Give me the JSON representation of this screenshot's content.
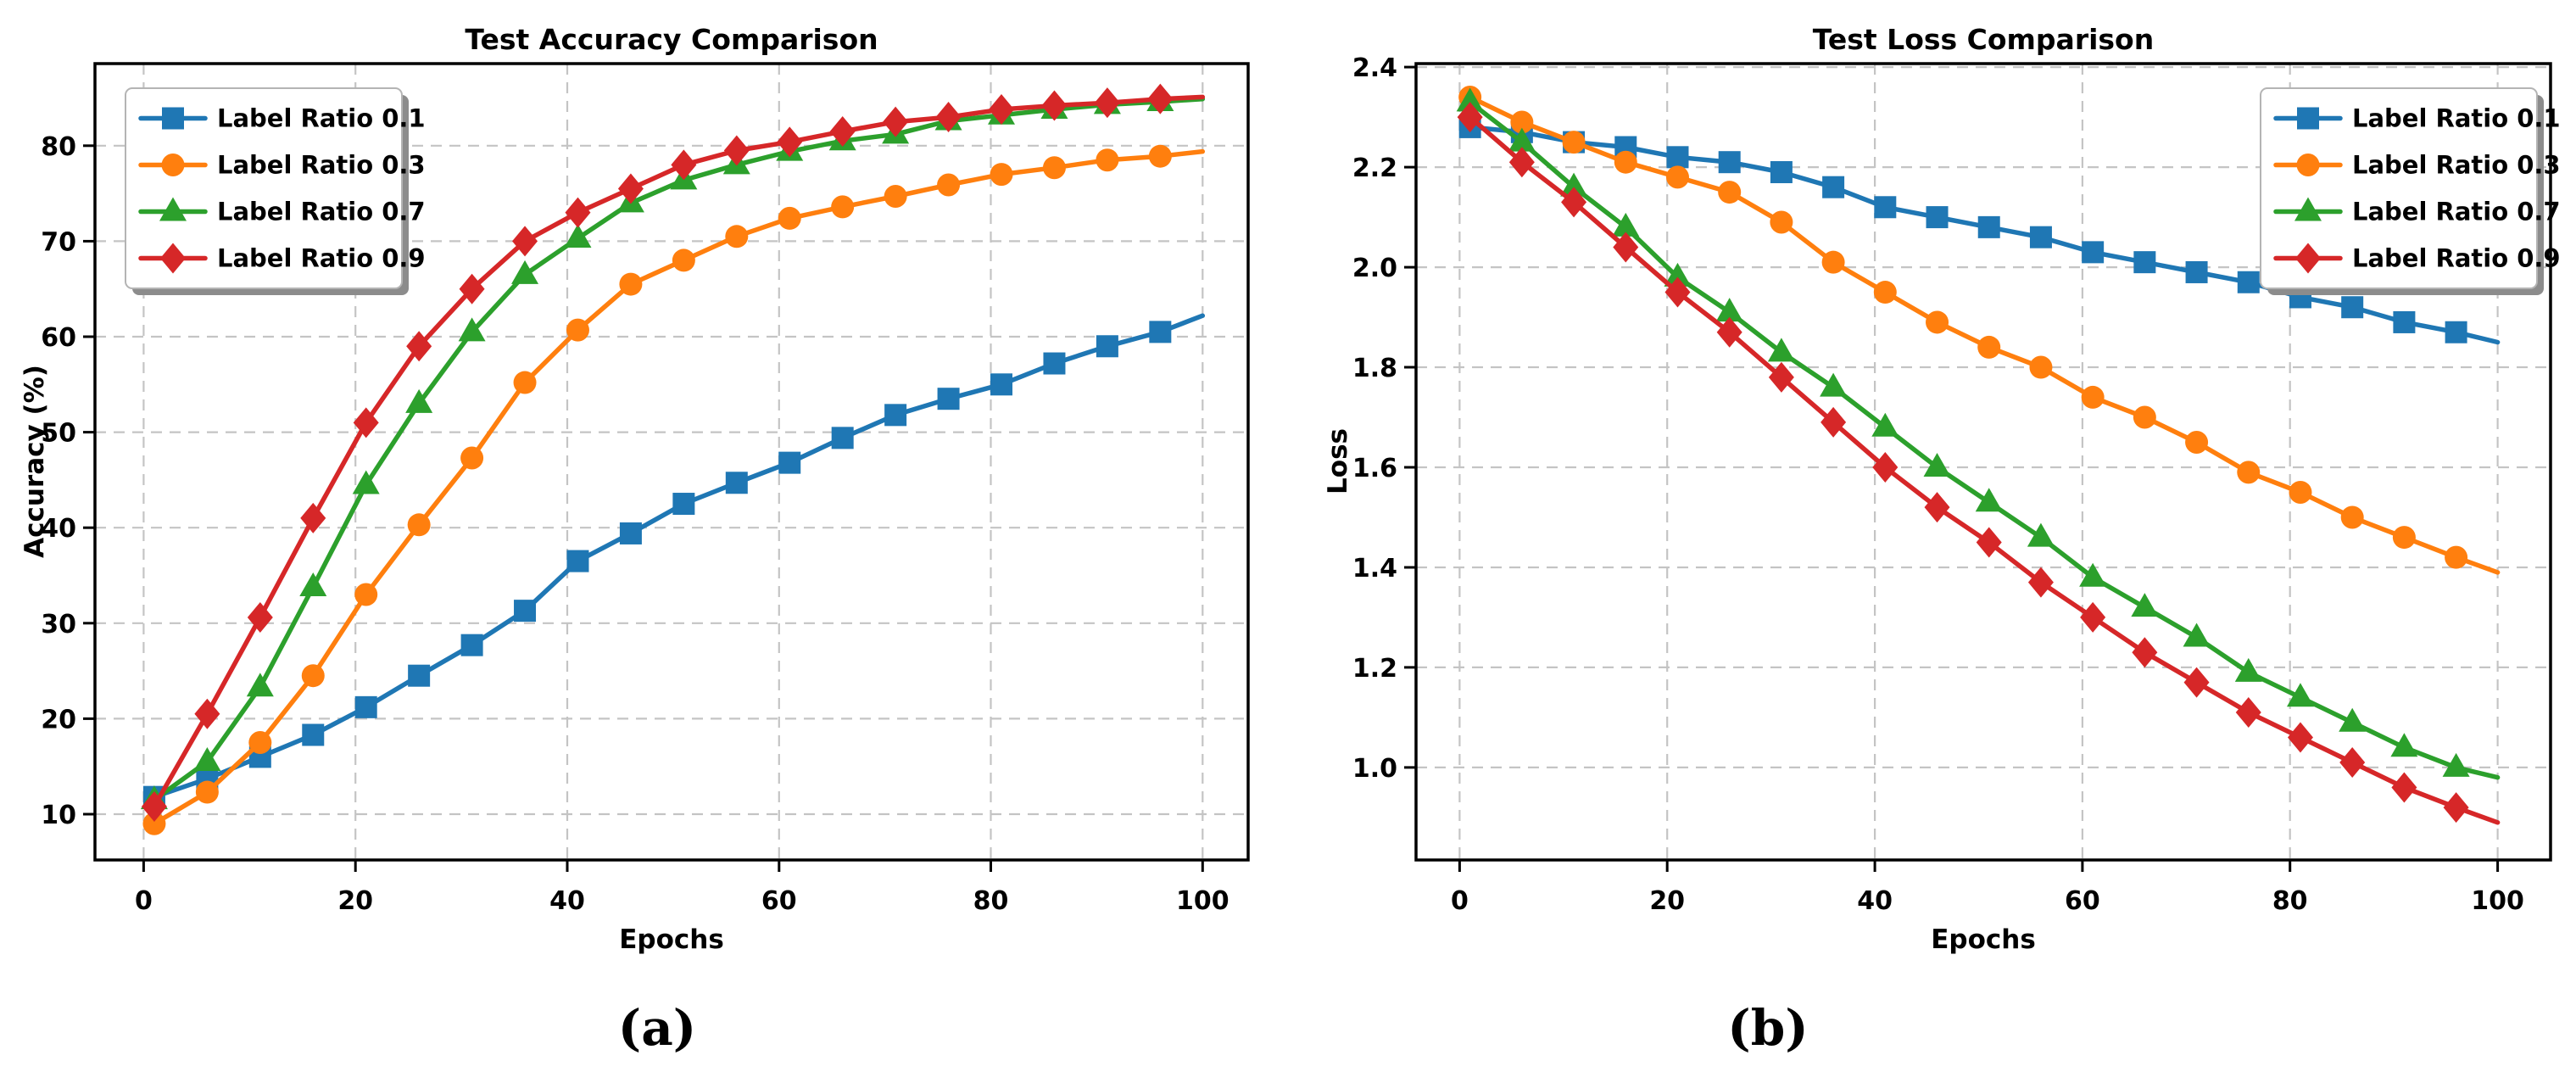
{
  "figure": {
    "background": "#ffffff"
  },
  "captions": {
    "a": "(a)",
    "b": "(b)"
  },
  "colors": {
    "series_blue": "#1f77b4",
    "series_orange": "#ff7f0e",
    "series_green": "#2ca02c",
    "series_red": "#d62728",
    "grid": "#c4c4c4",
    "axis": "#000000",
    "legend_border": "#b4b4b4",
    "legend_shadow": "#8c8c8c"
  },
  "chart_data": [
    {
      "type": "line",
      "title": "Test Accuracy Comparison",
      "xlabel": "Epochs",
      "ylabel": "Accuracy (%)",
      "xlim": [
        -4.6,
        104.3
      ],
      "ylim": [
        5.2,
        88.6
      ],
      "xticks": [
        0,
        20,
        40,
        60,
        80,
        100
      ],
      "yticks": [
        10,
        20,
        30,
        40,
        50,
        60,
        70,
        80
      ],
      "ytick_decimals": 0,
      "grid": true,
      "legend_position": "upper-left",
      "marker_max_x": 96,
      "x": [
        1,
        6,
        11,
        16,
        21,
        26,
        31,
        36,
        41,
        46,
        51,
        56,
        61,
        66,
        71,
        76,
        81,
        86,
        91,
        96,
        100
      ],
      "series": [
        {
          "name": "Label Ratio 0.1",
          "color": "#1f77b4",
          "marker": "square",
          "values": [
            11.8,
            13.7,
            16.0,
            18.3,
            21.2,
            24.5,
            27.7,
            31.3,
            36.5,
            39.4,
            42.5,
            44.7,
            46.8,
            49.4,
            51.8,
            53.5,
            55.0,
            57.2,
            59.0,
            60.5,
            62.2
          ]
        },
        {
          "name": "Label Ratio 0.3",
          "color": "#ff7f0e",
          "marker": "circle",
          "values": [
            9.0,
            12.3,
            17.5,
            24.5,
            33.0,
            40.3,
            47.3,
            55.2,
            60.7,
            65.5,
            68.0,
            70.5,
            72.4,
            73.6,
            74.7,
            75.9,
            77.0,
            77.7,
            78.5,
            78.9,
            79.4
          ]
        },
        {
          "name": "Label Ratio 0.7",
          "color": "#2ca02c",
          "marker": "triangle",
          "values": [
            11.5,
            15.5,
            23.3,
            33.8,
            44.5,
            53.0,
            60.5,
            66.5,
            70.3,
            74.0,
            76.4,
            78.0,
            79.4,
            80.5,
            81.2,
            82.6,
            83.2,
            83.8,
            84.3,
            84.6,
            84.9
          ]
        },
        {
          "name": "Label Ratio 0.9",
          "color": "#d62728",
          "marker": "diamond",
          "values": [
            10.8,
            20.5,
            30.6,
            41.0,
            51.0,
            59.0,
            65.0,
            70.0,
            73.0,
            75.5,
            78.0,
            79.5,
            80.4,
            81.5,
            82.5,
            83.0,
            83.8,
            84.2,
            84.5,
            84.9,
            85.1
          ]
        }
      ]
    },
    {
      "type": "line",
      "title": "Test Loss Comparison",
      "xlabel": "Epochs",
      "ylabel": "Loss",
      "xlim": [
        -4.2,
        105.1
      ],
      "ylim": [
        0.815,
        2.407
      ],
      "xticks": [
        0,
        20,
        40,
        60,
        80,
        100
      ],
      "yticks": [
        1.0,
        1.2,
        1.4,
        1.6,
        1.8,
        2.0,
        2.2,
        2.4
      ],
      "ytick_decimals": 1,
      "grid": true,
      "legend_position": "upper-right",
      "marker_max_x": 96,
      "x": [
        1,
        6,
        11,
        16,
        21,
        26,
        31,
        36,
        41,
        46,
        51,
        56,
        61,
        66,
        71,
        76,
        81,
        86,
        91,
        96,
        100
      ],
      "series": [
        {
          "name": "Label Ratio 0.1",
          "color": "#1f77b4",
          "marker": "square",
          "values": [
            2.28,
            2.27,
            2.25,
            2.24,
            2.22,
            2.21,
            2.19,
            2.16,
            2.12,
            2.1,
            2.08,
            2.06,
            2.03,
            2.01,
            1.99,
            1.97,
            1.94,
            1.92,
            1.89,
            1.87,
            1.85
          ]
        },
        {
          "name": "Label Ratio 0.3",
          "color": "#ff7f0e",
          "marker": "circle",
          "values": [
            2.34,
            2.29,
            2.25,
            2.21,
            2.18,
            2.15,
            2.09,
            2.01,
            1.95,
            1.89,
            1.84,
            1.8,
            1.74,
            1.7,
            1.65,
            1.59,
            1.55,
            1.5,
            1.46,
            1.42,
            1.39
          ]
        },
        {
          "name": "Label Ratio 0.7",
          "color": "#2ca02c",
          "marker": "triangle",
          "values": [
            2.33,
            2.25,
            2.16,
            2.08,
            1.98,
            1.91,
            1.83,
            1.76,
            1.68,
            1.6,
            1.53,
            1.46,
            1.38,
            1.32,
            1.26,
            1.19,
            1.14,
            1.09,
            1.04,
            1.0,
            0.98
          ]
        },
        {
          "name": "Label Ratio 0.9",
          "color": "#d62728",
          "marker": "diamond",
          "values": [
            2.3,
            2.21,
            2.13,
            2.04,
            1.95,
            1.87,
            1.78,
            1.69,
            1.6,
            1.52,
            1.45,
            1.37,
            1.3,
            1.23,
            1.17,
            1.11,
            1.06,
            1.01,
            0.96,
            0.92,
            0.89
          ]
        }
      ]
    }
  ]
}
